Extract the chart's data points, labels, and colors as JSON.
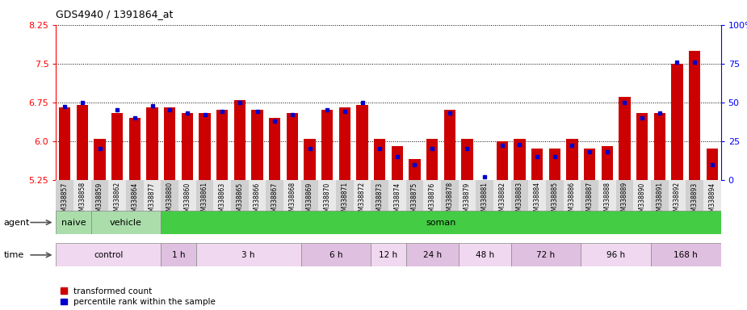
{
  "title": "GDS4940 / 1391864_at",
  "samples": [
    "GSM338857",
    "GSM338858",
    "GSM338859",
    "GSM338862",
    "GSM338864",
    "GSM338877",
    "GSM338880",
    "GSM338860",
    "GSM338861",
    "GSM338863",
    "GSM338865",
    "GSM338866",
    "GSM338867",
    "GSM338868",
    "GSM338869",
    "GSM338870",
    "GSM338871",
    "GSM338872",
    "GSM338873",
    "GSM338874",
    "GSM338875",
    "GSM338876",
    "GSM338878",
    "GSM338879",
    "GSM338881",
    "GSM338882",
    "GSM338883",
    "GSM338884",
    "GSM338885",
    "GSM338886",
    "GSM338887",
    "GSM338888",
    "GSM338889",
    "GSM338890",
    "GSM338891",
    "GSM338892",
    "GSM338893",
    "GSM338894"
  ],
  "transformed_count": [
    6.65,
    6.7,
    6.05,
    6.55,
    6.45,
    6.65,
    6.65,
    6.55,
    6.55,
    6.6,
    6.8,
    6.6,
    6.45,
    6.55,
    6.05,
    6.6,
    6.65,
    6.7,
    6.05,
    5.9,
    5.65,
    6.05,
    6.6,
    6.05,
    5.25,
    6.0,
    6.05,
    5.85,
    5.85,
    6.05,
    5.85,
    5.9,
    6.85,
    6.55,
    6.55,
    7.5,
    7.75,
    5.85
  ],
  "percentile_rank": [
    47,
    50,
    20,
    45,
    40,
    48,
    45,
    43,
    42,
    44,
    50,
    44,
    38,
    42,
    20,
    45,
    44,
    50,
    20,
    15,
    10,
    20,
    43,
    20,
    2,
    22,
    23,
    15,
    15,
    22,
    18,
    18,
    50,
    40,
    43,
    76,
    76,
    10
  ],
  "ylim": [
    5.25,
    8.25
  ],
  "yticks_left": [
    5.25,
    6.0,
    6.75,
    7.5,
    8.25
  ],
  "yticks_right": [
    0,
    25,
    50,
    75,
    100
  ],
  "bar_color": "#cc0000",
  "blue_color": "#0000cc",
  "agent_groups": [
    {
      "label": "naive",
      "start": 0,
      "end": 2,
      "color": "#aaddaa"
    },
    {
      "label": "vehicle",
      "start": 2,
      "end": 6,
      "color": "#aaddaa"
    },
    {
      "label": "soman",
      "start": 6,
      "end": 38,
      "color": "#44cc44"
    }
  ],
  "time_groups": [
    {
      "label": "control",
      "start": 0,
      "end": 6
    },
    {
      "label": "1 h",
      "start": 6,
      "end": 8
    },
    {
      "label": "3 h",
      "start": 8,
      "end": 14
    },
    {
      "label": "6 h",
      "start": 14,
      "end": 18
    },
    {
      "label": "12 h",
      "start": 18,
      "end": 20
    },
    {
      "label": "24 h",
      "start": 20,
      "end": 23
    },
    {
      "label": "48 h",
      "start": 23,
      "end": 26
    },
    {
      "label": "72 h",
      "start": 26,
      "end": 30
    },
    {
      "label": "96 h",
      "start": 30,
      "end": 34
    },
    {
      "label": "168 h",
      "start": 34,
      "end": 38
    }
  ],
  "time_colors": [
    "#f0d8f0",
    "#e0c0e0"
  ],
  "plot_bg": "#ffffff",
  "grid_color": "#555555",
  "xlabel_bg": "#d8d8d8"
}
